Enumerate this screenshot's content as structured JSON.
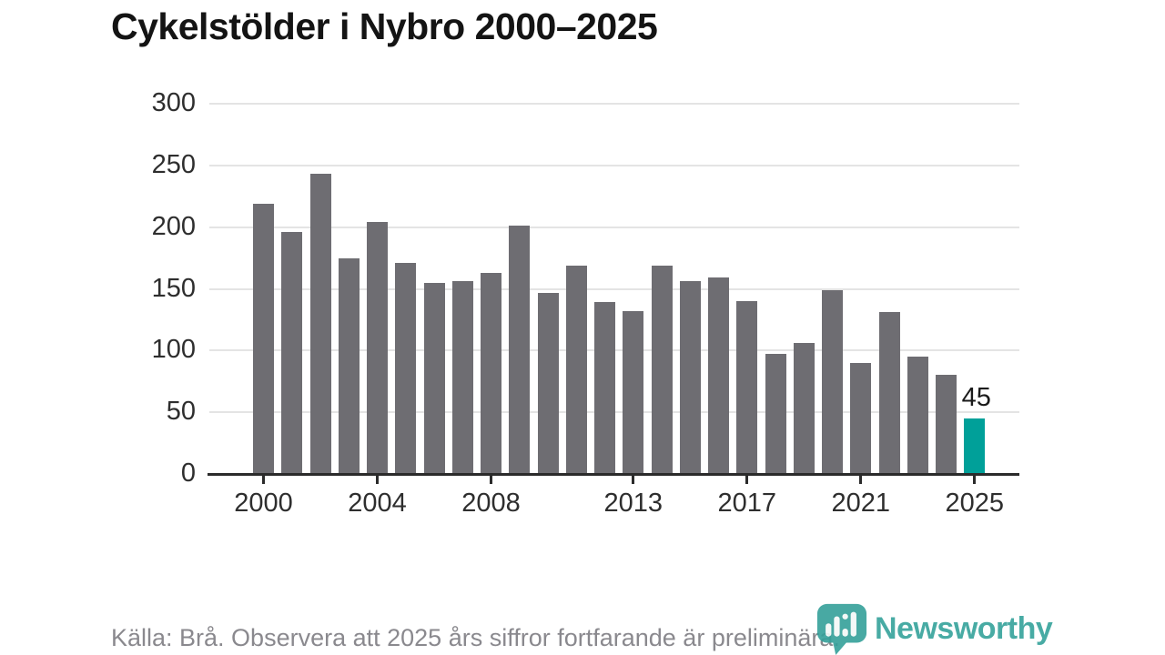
{
  "title": "Cykelstölder i Nybro 2000–2025",
  "chart_data": {
    "type": "bar",
    "title": "Cykelstölder i Nybro 2000–2025",
    "categories": [
      2000,
      2001,
      2002,
      2003,
      2004,
      2005,
      2006,
      2007,
      2008,
      2009,
      2010,
      2011,
      2012,
      2013,
      2014,
      2015,
      2016,
      2017,
      2018,
      2019,
      2020,
      2021,
      2022,
      2023,
      2024,
      2025
    ],
    "values": [
      219,
      196,
      243,
      175,
      204,
      171,
      155,
      156,
      163,
      201,
      147,
      169,
      139,
      132,
      169,
      156,
      159,
      140,
      97,
      106,
      149,
      90,
      131,
      95,
      80,
      45
    ],
    "ylim": [
      0,
      300
    ],
    "yticks": [
      0,
      50,
      100,
      150,
      200,
      250,
      300
    ],
    "xtick_years": [
      2000,
      2004,
      2008,
      2013,
      2017,
      2021,
      2025
    ],
    "xtick_labels": [
      "2000",
      "2004",
      "2008",
      "2013",
      "2017",
      "2021",
      "2025"
    ],
    "grid": true,
    "legend": "none",
    "bar_color": "#6e6d72",
    "highlight_year": 2025,
    "highlight_color": "#00a099",
    "highlight_label": "45"
  },
  "footer": {
    "source_text": "Källa: Brå. Observera att 2025 års siffror fortfarande är preliminära."
  },
  "branding": {
    "wordmark": "Newsworthy",
    "brand_color": "#35a29b",
    "icon": "newsworthy-speech-bubble-bar-chart-icon"
  }
}
